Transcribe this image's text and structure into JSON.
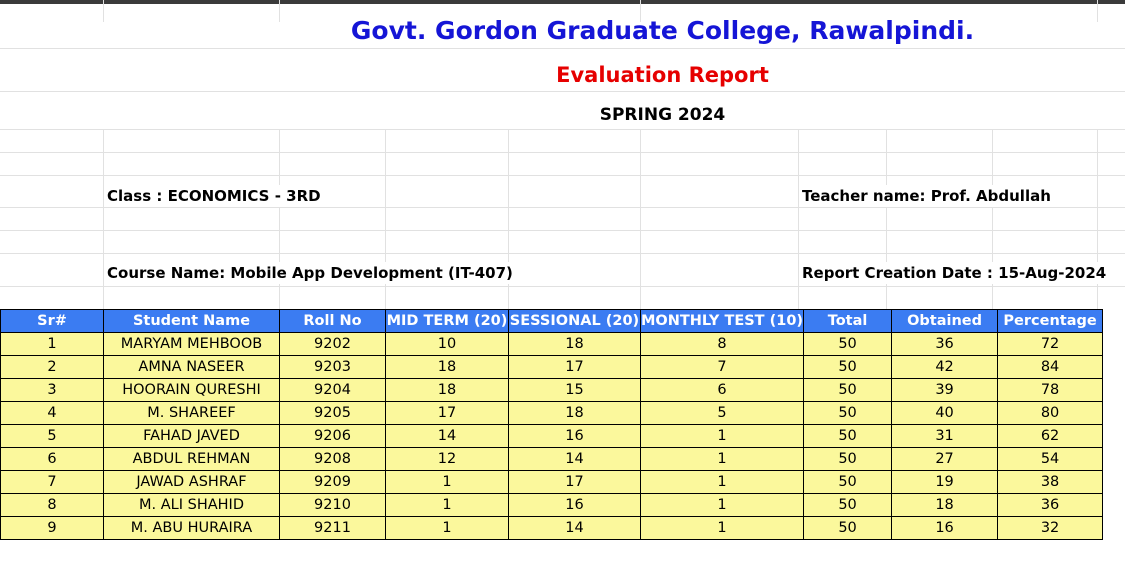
{
  "header": {
    "college": "Govt. Gordon Graduate College, Rawalpindi.",
    "report_title": "Evaluation Report",
    "term": "SPRING 2024"
  },
  "info": {
    "class": "Class : ECONOMICS - 3RD",
    "teacher": "Teacher name: Prof. Abdullah",
    "course": "Course Name: Mobile App Development (IT-407)",
    "date": "Report Creation Date : 15-Aug-2024"
  },
  "table": {
    "columns": [
      "Sr#",
      "Student Name",
      "Roll No",
      "MID TERM (20)",
      "SESSIONAL (20)",
      "MONTHLY TEST (10)",
      "Total",
      "Obtained",
      "Percentage"
    ],
    "rows": [
      [
        "1",
        "MARYAM MEHBOOB",
        "9202",
        "10",
        "18",
        "8",
        "50",
        "36",
        "72"
      ],
      [
        "2",
        "AMNA NASEER",
        "9203",
        "18",
        "17",
        "7",
        "50",
        "42",
        "84"
      ],
      [
        "3",
        "HOORAIN QURESHI",
        "9204",
        "18",
        "15",
        "6",
        "50",
        "39",
        "78"
      ],
      [
        "4",
        "M. SHAREEF",
        "9205",
        "17",
        "18",
        "5",
        "50",
        "40",
        "80"
      ],
      [
        "5",
        "FAHAD JAVED",
        "9206",
        "14",
        "16",
        "1",
        "50",
        "31",
        "62"
      ],
      [
        "6",
        "ABDUL REHMAN",
        "9208",
        "12",
        "14",
        "1",
        "50",
        "27",
        "54"
      ],
      [
        "7",
        "JAWAD ASHRAF",
        "9209",
        "1",
        "17",
        "1",
        "50",
        "19",
        "38"
      ],
      [
        "8",
        "M. ALI SHAHID",
        "9210",
        "1",
        "16",
        "1",
        "50",
        "18",
        "36"
      ],
      [
        "9",
        "M. ABU HURAIRA",
        "9211",
        "1",
        "14",
        "1",
        "50",
        "16",
        "32"
      ]
    ]
  },
  "colors": {
    "header_bg": "#3b7cf2",
    "row_bg": "#fbf89c",
    "college_title": "#1515d6",
    "report_title": "#e60000"
  }
}
